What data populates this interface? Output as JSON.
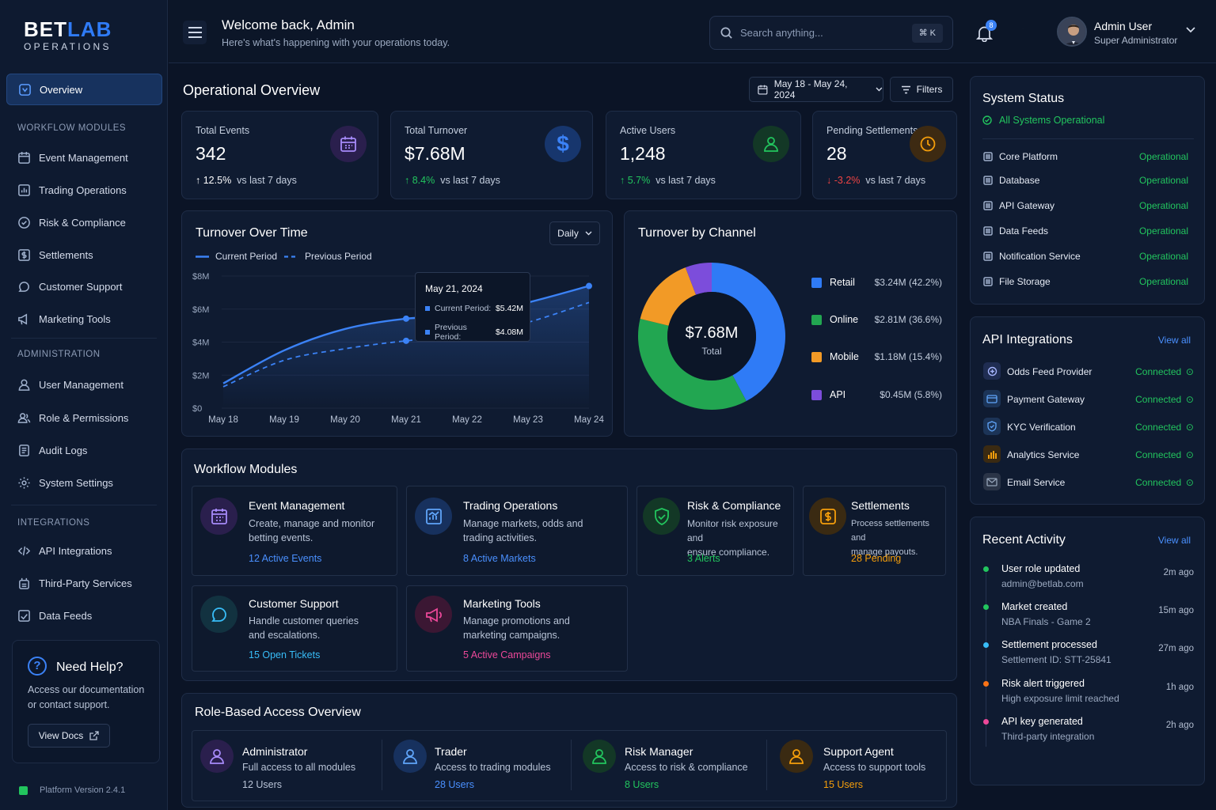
{
  "brand": {
    "name_a": "BET",
    "name_b": "LAB",
    "sub": "OPERATIONS"
  },
  "sidebar": {
    "active": "Overview",
    "sections": [
      {
        "label": "WORKFLOW MODULES",
        "items": [
          "Event Management",
          "Trading Operations",
          "Risk & Compliance",
          "Settlements",
          "Customer Support",
          "Marketing Tools"
        ]
      },
      {
        "label": "ADMINISTRATION",
        "items": [
          "User Management",
          "Role & Permissions",
          "Audit Logs",
          "System Settings"
        ]
      },
      {
        "label": "INTEGRATIONS",
        "items": [
          "API Integrations",
          "Third-Party Services",
          "Data Feeds"
        ]
      }
    ],
    "help": {
      "icon": "?",
      "title": "Need Help?",
      "desc": "Access our documentation or contact support.",
      "button": "View Docs"
    },
    "version": "Platform Version 2.4.1"
  },
  "header": {
    "welcome": "Welcome back, Admin",
    "sub": "Here's what's happening with your operations today.",
    "search_placeholder": "Search anything...",
    "shortcut": "⌘ K",
    "notifications": "8",
    "user_name": "Admin User",
    "user_role": "Super Administrator"
  },
  "overview": {
    "title": "Operational Overview",
    "date_range": "May 18 - May 24, 2024",
    "filters": "Filters"
  },
  "stats": [
    {
      "label": "Total Events",
      "value": "342",
      "change": "12.5%",
      "note": "vs last 7 days",
      "dir": "up",
      "color": "#ffffff",
      "icon": "calendar-icon"
    },
    {
      "label": "Total Turnover",
      "value": "$7.68M",
      "change": "8.4%",
      "note": "vs last 7 days",
      "dir": "up",
      "color": "#22c55e",
      "icon": "dollar-icon"
    },
    {
      "label": "Active Users",
      "value": "1,248",
      "change": "5.7%",
      "note": "vs last 7 days",
      "dir": "up",
      "color": "#22c55e",
      "icon": "user-icon"
    },
    {
      "label": "Pending Settlements",
      "value": "28",
      "change": "-3.2%",
      "note": "vs last 7 days",
      "dir": "down",
      "color": "#ef4444",
      "icon": "clock-icon"
    }
  ],
  "turnover_chart": {
    "title": "Turnover Over Time",
    "period": "Daily",
    "legend_current": "Current Period",
    "legend_previous": "Previous Period",
    "tooltip": {
      "date": "May 21, 2024",
      "current_label": "Current Period:",
      "current_value": "$5.42M",
      "previous_label": "Previous Period:",
      "previous_value": "$4.08M"
    }
  },
  "channel_chart": {
    "title": "Turnover by Channel",
    "center_value": "$7.68M",
    "center_label": "Total"
  },
  "chart_data": [
    {
      "type": "line",
      "title": "Turnover Over Time",
      "x": [
        "May 18",
        "May 19",
        "May 20",
        "May 21",
        "May 22",
        "May 23",
        "May 24"
      ],
      "y_ticks": [
        "$8M",
        "$6M",
        "$4M",
        "$2M",
        "$0"
      ],
      "ylim": [
        0,
        8
      ],
      "series": [
        {
          "name": "Current Period",
          "color": "#3b82f6",
          "style": "solid",
          "values": [
            1.5,
            3.5,
            4.8,
            5.42,
            5.6,
            6.4,
            7.4
          ]
        },
        {
          "name": "Previous Period",
          "color": "#3b82f6",
          "style": "dashed",
          "values": [
            1.3,
            2.9,
            3.6,
            4.08,
            4.4,
            5.2,
            6.4
          ]
        }
      ]
    },
    {
      "type": "pie",
      "title": "Turnover by Channel",
      "categories": [
        "Retail",
        "Online",
        "Mobile",
        "API"
      ],
      "values": [
        42.2,
        36.6,
        15.4,
        5.8
      ],
      "labels": [
        "$3.24M (42.2%)",
        "$2.81M (36.6%)",
        "$1.18M (15.4%)",
        "$0.45M (5.8%)"
      ],
      "colors": [
        "#2f7bf6",
        "#22a651",
        "#f29a26",
        "#7c4ddb"
      ]
    }
  ],
  "system_status": {
    "title": "System Status",
    "overall": "All Systems Operational",
    "items": [
      {
        "name": "Core Platform",
        "status": "Operational"
      },
      {
        "name": "Database",
        "status": "Operational"
      },
      {
        "name": "API Gateway",
        "status": "Operational"
      },
      {
        "name": "Data Feeds",
        "status": "Operational"
      },
      {
        "name": "Notification Service",
        "status": "Operational"
      },
      {
        "name": "File Storage",
        "status": "Operational"
      }
    ]
  },
  "api_integrations": {
    "title": "API Integrations",
    "view_all": "View all",
    "items": [
      {
        "name": "Odds Feed Provider",
        "status": "Connected"
      },
      {
        "name": "Payment Gateway",
        "status": "Connected"
      },
      {
        "name": "KYC Verification",
        "status": "Connected"
      },
      {
        "name": "Analytics Service",
        "status": "Connected"
      },
      {
        "name": "Email Service",
        "status": "Connected"
      }
    ]
  },
  "recent_activity": {
    "title": "Recent Activity",
    "view_all": "View all",
    "items": [
      {
        "title": "User role updated",
        "sub": "admin@betlab.com",
        "time": "2m ago",
        "color": "#22c55e"
      },
      {
        "title": "Market created",
        "sub": "NBA Finals - Game 2",
        "time": "15m ago",
        "color": "#22c55e"
      },
      {
        "title": "Settlement processed",
        "sub": "Settlement ID: STT-25841",
        "time": "27m ago",
        "color": "#38bdf8"
      },
      {
        "title": "Risk alert triggered",
        "sub": "High exposure limit reached",
        "time": "1h ago",
        "color": "#f97316"
      },
      {
        "title": "API key generated",
        "sub": "Third-party integration",
        "time": "2h ago",
        "color": "#ec4899"
      }
    ]
  },
  "workflow": {
    "title": "Workflow Modules",
    "modules": [
      {
        "title": "Event Management",
        "desc1": "Create, manage and monitor",
        "desc2": "betting events.",
        "count": "12 Active Events",
        "color": "#4a90ff"
      },
      {
        "title": "Trading Operations",
        "desc1": "Manage markets, odds and",
        "desc2": "trading activities.",
        "count": "8 Active Markets",
        "color": "#4a90ff"
      },
      {
        "title": "Risk & Compliance",
        "desc1": "Monitor risk exposure and",
        "desc2": "ensure compliance.",
        "count": "3 Alerts",
        "color": "#22c55e"
      },
      {
        "title": "Settlements",
        "desc1": "Process settlements and",
        "desc2": "manage payouts.",
        "count": "28 Pending",
        "color": "#f59e0b"
      },
      {
        "title": "Customer Support",
        "desc1": "Handle customer queries",
        "desc2": "and escalations.",
        "count": "15 Open Tickets",
        "color": "#38bdf8"
      },
      {
        "title": "Marketing Tools",
        "desc1": "Manage promotions and",
        "desc2": "marketing campaigns.",
        "count": "5 Active Campaigns",
        "color": "#ec4899"
      }
    ]
  },
  "roles": {
    "title": "Role-Based Access Overview",
    "items": [
      {
        "title": "Administrator",
        "desc": "Full access to all modules",
        "count": "12 Users",
        "color": "#b8c3d6"
      },
      {
        "title": "Trader",
        "desc": "Access to trading modules",
        "count": "28 Users",
        "color": "#4a90ff"
      },
      {
        "title": "Risk Manager",
        "desc": "Access to risk & compliance",
        "count": "8 Users",
        "color": "#22c55e"
      },
      {
        "title": "Support Agent",
        "desc": "Access to support tools",
        "count": "15 Users",
        "color": "#f59e0b"
      }
    ]
  }
}
